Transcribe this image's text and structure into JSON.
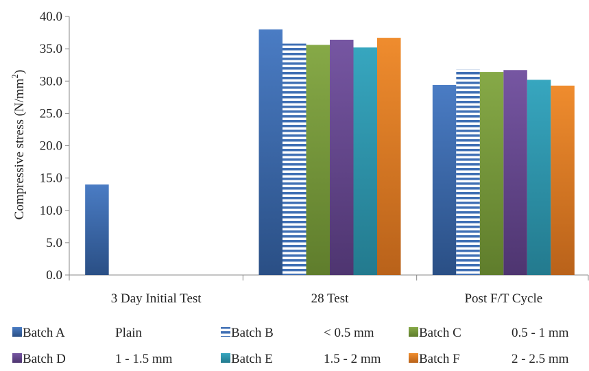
{
  "chart_data": {
    "type": "bar",
    "title": "",
    "xlabel": "",
    "ylabel": "Compressive stress (N/mm",
    "ylabel_superscript": "2",
    "ylabel_close": ")",
    "ylim": [
      0,
      40
    ],
    "yticks": [
      "0.0",
      "5.0",
      "10.0",
      "15.0",
      "20.0",
      "25.0",
      "30.0",
      "35.0",
      "40.0"
    ],
    "categories": [
      "3 Day Initial Test",
      "28 Test",
      "Post F/T Cycle"
    ],
    "legend_position": "bottom",
    "grid": false,
    "series": [
      {
        "name": "Batch A",
        "desc": "Plain",
        "color": "#3f6fb4",
        "pattern": "solid",
        "values": [
          14.0,
          38.0,
          29.4
        ]
      },
      {
        "name": "Batch B",
        "desc": "< 0.5 mm",
        "color": "#3f6fb4",
        "pattern": "stripes",
        "values": [
          null,
          35.8,
          31.8
        ]
      },
      {
        "name": "Batch C",
        "desc": "0.5 - 1 mm",
        "color": "#7a9d3c",
        "pattern": "solid",
        "values": [
          null,
          35.6,
          31.4
        ]
      },
      {
        "name": "Batch D",
        "desc": "1 - 1.5 mm",
        "color": "#6a4a94",
        "pattern": "solid",
        "values": [
          null,
          36.4,
          31.7
        ]
      },
      {
        "name": "Batch E",
        "desc": "1.5 - 2 mm",
        "color": "#2f9ab3",
        "pattern": "solid",
        "values": [
          null,
          35.2,
          30.2
        ]
      },
      {
        "name": "Batch F",
        "desc": "2 - 2.5 mm",
        "color": "#e27f24",
        "pattern": "solid",
        "values": [
          null,
          36.7,
          29.3
        ]
      }
    ]
  }
}
